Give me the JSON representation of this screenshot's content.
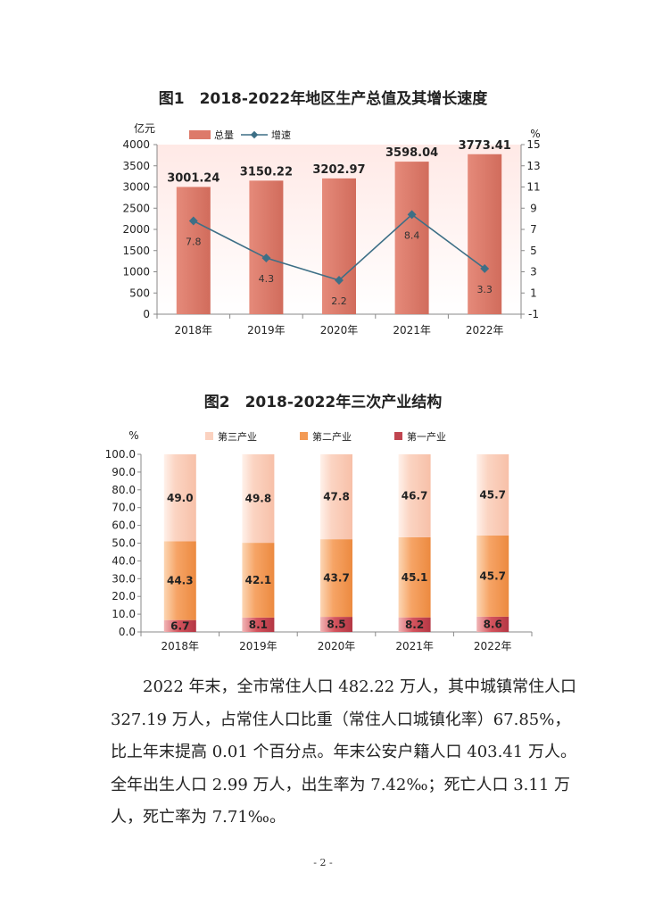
{
  "page": {
    "paragraph_lines": [
      "　　2022 年末，全市常住人口 482.22 万人，其中城镇常住人口",
      "327.19 万人，占常住人口比重（常住人口城镇化率）67.85%，",
      "比上年末提高 0.01 个百分点。年末公安户籍人口 403.41 万人。",
      "全年出生人口 2.99 万人，出生率为 7.42‰；死亡人口 3.11 万",
      "人，死亡率为 7.71‰。"
    ],
    "page_number": "- 2 -"
  },
  "chart_data": [
    {
      "type": "bar",
      "title": "图1　2018-2022年地区生产总值及其增长速度",
      "categories": [
        "2018年",
        "2019年",
        "2020年",
        "2021年",
        "2022年"
      ],
      "ylabel": "亿元",
      "ylim": [
        0,
        4000
      ],
      "yticks": [
        "0",
        "500",
        "1000",
        "1500",
        "2000",
        "2500",
        "3000",
        "3500",
        "4000"
      ],
      "y2label": "%",
      "y2lim": [
        -1,
        15
      ],
      "y2ticks": [
        "-1",
        "1",
        "3",
        "5",
        "7",
        "9",
        "11",
        "13",
        "15"
      ],
      "legend_position": "top-left",
      "series": [
        {
          "name": "总量",
          "type": "bar",
          "axis": "left",
          "color": "#dd7a6a",
          "values": [
            3001.24,
            3150.22,
            3202.97,
            3598.04,
            3773.41
          ],
          "labels": [
            "3001.24",
            "3150.22",
            "3202.97",
            "3598.04",
            "3773.41"
          ]
        },
        {
          "name": "增速",
          "type": "line",
          "axis": "right",
          "color": "#3d6f86",
          "values": [
            7.8,
            4.3,
            2.2,
            8.4,
            3.3
          ],
          "labels": [
            "7.8",
            "4.3",
            "2.2",
            "8.4",
            "3.3"
          ]
        }
      ],
      "background": "gradient",
      "grid": false
    },
    {
      "type": "bar",
      "stacked": true,
      "title": "图2　2018-2022年三次产业结构",
      "categories": [
        "2018年",
        "2019年",
        "2020年",
        "2021年",
        "2022年"
      ],
      "ylabel": "%",
      "ylim": [
        0,
        100
      ],
      "yticks": [
        "0.0",
        "10.0",
        "20.0",
        "30.0",
        "40.0",
        "50.0",
        "60.0",
        "70.0",
        "80.0",
        "90.0",
        "100.0"
      ],
      "legend_position": "top",
      "legend_order": [
        "第三产业",
        "第二产业",
        "第一产业"
      ],
      "series": [
        {
          "name": "第一产业",
          "color": "#c04550",
          "values": [
            6.7,
            8.1,
            8.5,
            8.2,
            8.6
          ],
          "labels": [
            "6.7",
            "8.1",
            "8.5",
            "8.2",
            "8.6"
          ]
        },
        {
          "name": "第二产业",
          "color": "#f39a55",
          "values": [
            44.3,
            42.1,
            43.7,
            45.1,
            45.7
          ],
          "labels": [
            "44.3",
            "42.1",
            "43.7",
            "45.1",
            "45.7"
          ]
        },
        {
          "name": "第三产业",
          "color": "#fbd2c0",
          "values": [
            49.0,
            49.8,
            47.8,
            46.7,
            45.7
          ],
          "labels": [
            "49.0",
            "49.8",
            "47.8",
            "46.7",
            "45.7"
          ]
        }
      ],
      "grid": false
    }
  ]
}
